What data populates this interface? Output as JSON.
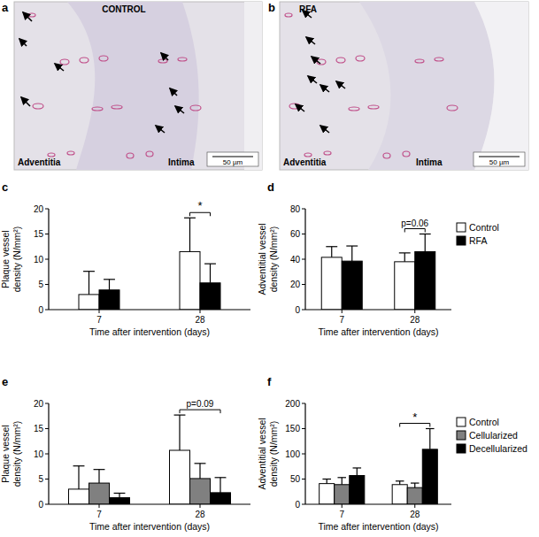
{
  "panel_labels": [
    "a",
    "b",
    "c",
    "d",
    "e",
    "f"
  ],
  "images": [
    {
      "title": "CONTROL",
      "labels": [
        "Adventitia",
        "Intima"
      ],
      "scale_bar": "50 µm"
    },
    {
      "title": "RFA",
      "labels": [
        "Adventitia",
        "Intima"
      ],
      "scale_bar": "50 µm"
    }
  ],
  "chart_data": [
    {
      "type": "bar",
      "categories": [
        "7",
        "28"
      ],
      "x_label": "Time after intervention (days)",
      "y_label": "Plaque vessel\ndensity (N/mm²)",
      "ylim": [
        0,
        20
      ],
      "yticks": [
        0,
        5,
        10,
        15,
        20
      ],
      "series": [
        {
          "name": "Control",
          "color": "#ffffff",
          "values": [
            3.0,
            11.5
          ],
          "errors": [
            4.6,
            6.7
          ]
        },
        {
          "name": "RFA",
          "color": "#000000",
          "values": [
            3.9,
            5.3
          ],
          "errors": [
            2.1,
            3.8
          ]
        }
      ],
      "annotations": [
        {
          "text": "*",
          "category": "28",
          "series": [
            "Control",
            "RFA"
          ]
        }
      ]
    },
    {
      "type": "bar",
      "categories": [
        "7",
        "28"
      ],
      "x_label": "Time after intervention (days)",
      "y_label": "Adventitial vessel\ndensity (N/mm²)",
      "ylim": [
        0,
        80
      ],
      "yticks": [
        0,
        20,
        40,
        60,
        80
      ],
      "legend": "right",
      "series": [
        {
          "name": "Control",
          "color": "#ffffff",
          "values": [
            41.5,
            38.0
          ],
          "errors": [
            8.5,
            7.0
          ]
        },
        {
          "name": "RFA",
          "color": "#000000",
          "values": [
            38.5,
            46.0
          ],
          "errors": [
            12.0,
            14.0
          ]
        }
      ],
      "annotations": [
        {
          "text": "p=0.06",
          "category": "28",
          "series": [
            "Control",
            "RFA"
          ]
        }
      ]
    },
    {
      "type": "bar",
      "categories": [
        "7",
        "28"
      ],
      "x_label": "Time after intervention (days)",
      "y_label": "Plaque vessel\ndensity (N/mm²)",
      "ylim": [
        0,
        20
      ],
      "yticks": [
        0,
        5,
        10,
        15,
        20
      ],
      "series": [
        {
          "name": "Control",
          "color": "#ffffff",
          "values": [
            3.0,
            10.7
          ],
          "errors": [
            4.6,
            7.0
          ]
        },
        {
          "name": "Cellularized",
          "color": "#808080",
          "values": [
            4.2,
            5.1
          ],
          "errors": [
            2.7,
            3.0
          ]
        },
        {
          "name": "Decellularized",
          "color": "#000000",
          "values": [
            1.3,
            2.3
          ],
          "errors": [
            0.9,
            3.0
          ]
        }
      ],
      "annotations": [
        {
          "text": "p=0.09",
          "category": "28",
          "series": [
            "Control",
            "Decellularized"
          ]
        }
      ]
    },
    {
      "type": "bar",
      "categories": [
        "7",
        "28"
      ],
      "x_label": "Time after intervention (days)",
      "y_label": "Adventitial vessel\ndensity (N/mm²)",
      "ylim": [
        0,
        200
      ],
      "yticks": [
        0,
        50,
        100,
        150,
        200
      ],
      "legend": "right",
      "series": [
        {
          "name": "Control",
          "color": "#ffffff",
          "values": [
            41.0,
            39.0
          ],
          "errors": [
            9.0,
            7.0
          ]
        },
        {
          "name": "Cellularized",
          "color": "#808080",
          "values": [
            39.0,
            33.0
          ],
          "errors": [
            14.0,
            9.0
          ]
        },
        {
          "name": "Decellularized",
          "color": "#000000",
          "values": [
            57.0,
            109.0
          ],
          "errors": [
            15.0,
            41.0
          ]
        }
      ],
      "annotations": [
        {
          "text": "*",
          "category": "28",
          "series": [
            "Control",
            "Decellularized"
          ]
        }
      ]
    }
  ]
}
